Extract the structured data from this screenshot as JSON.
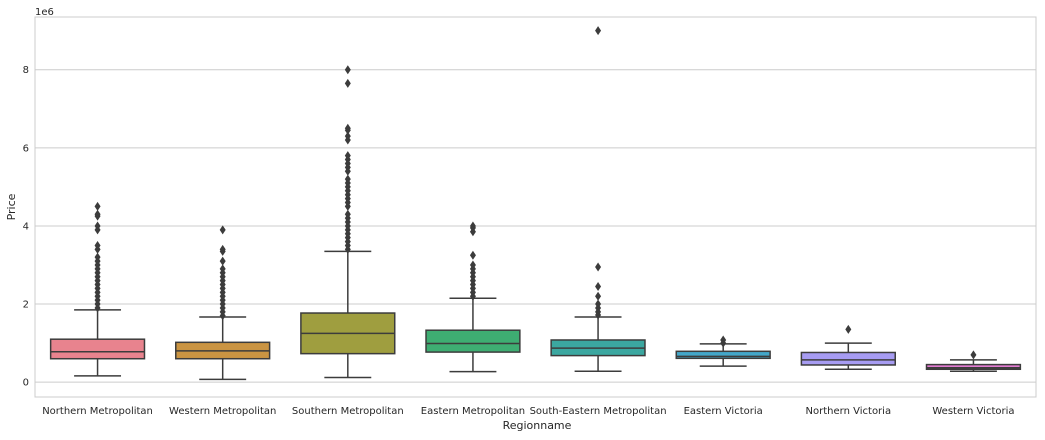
{
  "chart_data": {
    "type": "box",
    "title": "",
    "xlabel": "Regionname",
    "ylabel": "Price",
    "y_offset_label": "1e6",
    "ylim": [
      -0.38,
      9.35
    ],
    "yticks": [
      0,
      2,
      4,
      6,
      8
    ],
    "ytick_labels": [
      "0",
      "2",
      "4",
      "6",
      "8"
    ],
    "grid": "horizontal",
    "categories": [
      "Northern Metropolitan",
      "Western Metropolitan",
      "Southern Metropolitan",
      "Eastern Metropolitan",
      "South-Eastern Metropolitan",
      "Eastern Victoria",
      "Northern Victoria",
      "Western Victoria"
    ],
    "colors": [
      "#e8838e",
      "#ca9442",
      "#9f9e3f",
      "#3ead72",
      "#3ba7a0",
      "#43a7c9",
      "#a79cf2",
      "#e27bd1"
    ],
    "boxes": [
      {
        "whisker_low": 0.16,
        "q1": 0.6,
        "median": 0.78,
        "q3": 1.1,
        "whisker_high": 1.85,
        "outliers": [
          1.9,
          2.0,
          2.1,
          2.2,
          2.3,
          2.4,
          2.5,
          2.6,
          2.7,
          2.8,
          2.9,
          3.0,
          3.1,
          3.2,
          3.4,
          3.5,
          3.9,
          4.0,
          4.25,
          4.3,
          4.5
        ]
      },
      {
        "whisker_low": 0.07,
        "q1": 0.6,
        "median": 0.8,
        "q3": 1.02,
        "whisker_high": 1.67,
        "outliers": [
          1.7,
          1.8,
          1.9,
          2.0,
          2.1,
          2.2,
          2.3,
          2.4,
          2.5,
          2.6,
          2.7,
          2.8,
          2.9,
          3.1,
          3.35,
          3.4,
          3.9
        ]
      },
      {
        "whisker_low": 0.12,
        "q1": 0.73,
        "median": 1.25,
        "q3": 1.77,
        "whisker_high": 3.35,
        "outliers": [
          3.4,
          3.5,
          3.6,
          3.7,
          3.8,
          3.9,
          4.0,
          4.1,
          4.2,
          4.3,
          4.5,
          4.6,
          4.7,
          4.8,
          4.9,
          5.0,
          5.1,
          5.2,
          5.4,
          5.5,
          5.6,
          5.7,
          5.8,
          6.2,
          6.3,
          6.45,
          6.5,
          7.65,
          8.0
        ]
      },
      {
        "whisker_low": 0.27,
        "q1": 0.77,
        "median": 0.99,
        "q3": 1.33,
        "whisker_high": 2.15,
        "outliers": [
          2.2,
          2.3,
          2.4,
          2.5,
          2.6,
          2.7,
          2.8,
          2.9,
          3.0,
          3.25,
          3.85,
          3.95,
          4.0
        ]
      },
      {
        "whisker_low": 0.28,
        "q1": 0.68,
        "median": 0.87,
        "q3": 1.08,
        "whisker_high": 1.67,
        "outliers": [
          1.72,
          1.8,
          1.9,
          2.0,
          2.2,
          2.45,
          2.95,
          9.0
        ]
      },
      {
        "whisker_low": 0.41,
        "q1": 0.61,
        "median": 0.66,
        "q3": 0.79,
        "whisker_high": 0.98,
        "outliers": [
          1.0,
          1.08
        ]
      },
      {
        "whisker_low": 0.33,
        "q1": 0.44,
        "median": 0.57,
        "q3": 0.76,
        "whisker_high": 1.0,
        "outliers": [
          1.35
        ]
      },
      {
        "whisker_low": 0.28,
        "q1": 0.33,
        "median": 0.37,
        "q3": 0.45,
        "whisker_high": 0.57,
        "outliers": [
          0.7
        ]
      }
    ]
  }
}
